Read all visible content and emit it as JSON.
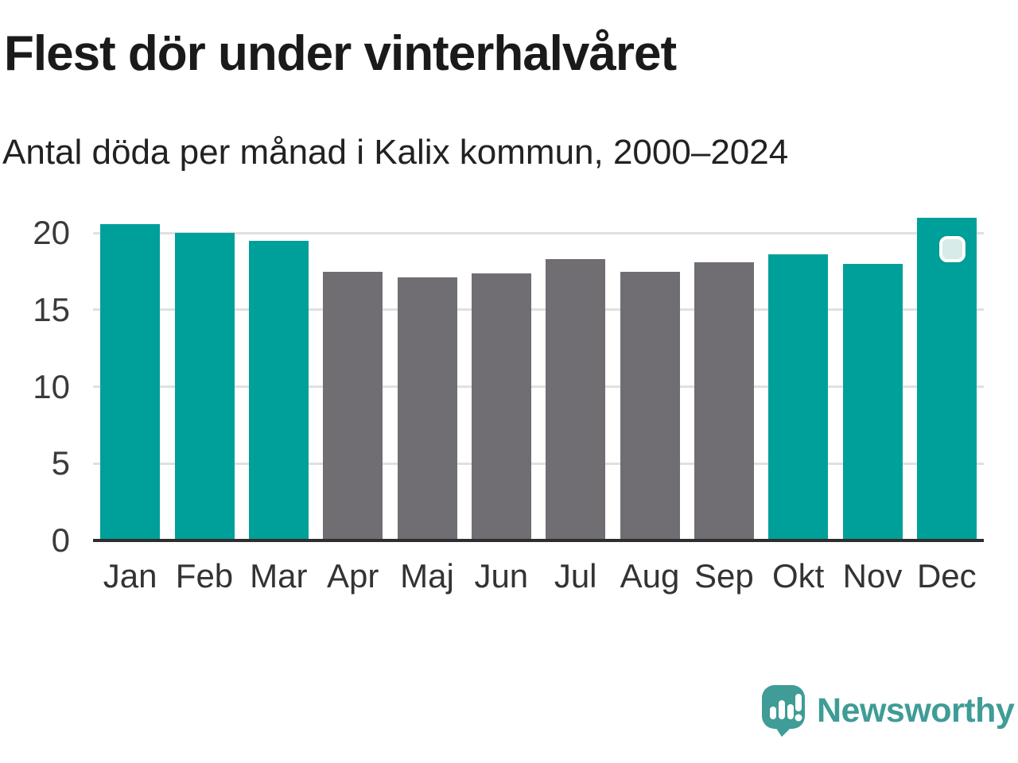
{
  "header": {
    "title": "Flest dör under vinterhalvåret",
    "subtitle": "Antal döda per månad i Kalix kommun, 2000–2024"
  },
  "chart_data": {
    "type": "bar",
    "title": "Flest dör under vinterhalvåret",
    "subtitle": "Antal döda per månad i Kalix kommun, 2000–2024",
    "categories": [
      "Jan",
      "Feb",
      "Mar",
      "Apr",
      "Maj",
      "Jun",
      "Jul",
      "Aug",
      "Sep",
      "Okt",
      "Nov",
      "Dec"
    ],
    "values": [
      20.6,
      20.0,
      19.5,
      17.5,
      17.1,
      17.4,
      18.3,
      17.5,
      18.1,
      18.6,
      18.0,
      21.0
    ],
    "bar_colors": [
      "teal",
      "teal",
      "teal",
      "gray",
      "gray",
      "gray",
      "gray",
      "gray",
      "gray",
      "teal",
      "teal",
      "teal"
    ],
    "palette": {
      "teal": "#00A09A",
      "gray": "#706D73"
    },
    "xlabel": "",
    "ylabel": "",
    "yticks": [
      0,
      5,
      10,
      15,
      20
    ],
    "ylim": [
      0,
      21.2
    ],
    "grid": true,
    "legend": "none",
    "highlight": {
      "category": "Dec",
      "badge_fill": "#D7EBE8",
      "badge_border": "#FFFFFF"
    }
  },
  "footer": {
    "brand": "Newsworthy",
    "brand_color": "#3F9C96",
    "logo_icon": "speech-bubble-bar-chart-icon"
  }
}
